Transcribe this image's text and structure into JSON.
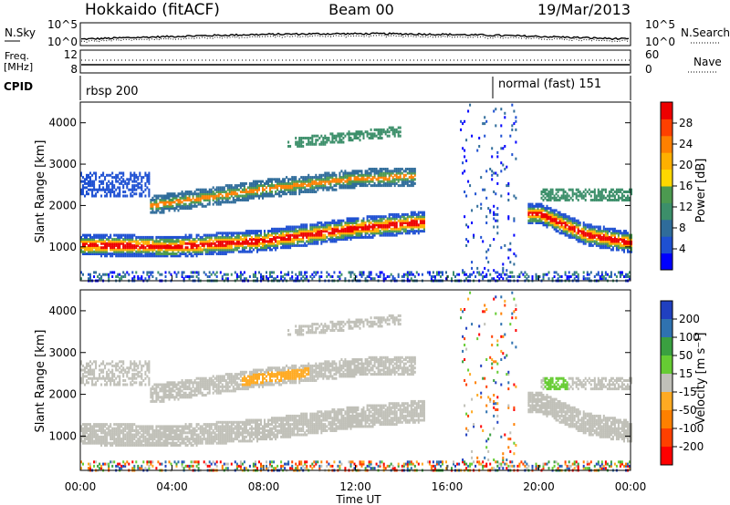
{
  "header": {
    "station": "Hokkaido (fitACF)",
    "beam": "Beam 00",
    "date": "19/Mar/2013"
  },
  "strip": {
    "nsky_label": "N.Sky",
    "nsky_ticks": [
      "10^5",
      "10^0"
    ],
    "nsearch_label": "N.Search",
    "nsearch_ticks": [
      "10^5",
      "10^0"
    ],
    "freq_label": "Freq.",
    "freq_unit": "[MHz]",
    "freq_ticks": [
      "12",
      "8"
    ],
    "nave_label": "Nave",
    "nave_ticks": [
      "60",
      "0"
    ],
    "cpid_label": "CPID",
    "cpid_segments": [
      {
        "name": "rbsp 200",
        "start_hour": 0
      },
      {
        "name": "normal (fast) 151",
        "start_hour": 18
      }
    ]
  },
  "chart_data": [
    {
      "type": "heatmap",
      "parameter": "Power",
      "ylabel": "Slant Range [km]",
      "xlabel": "",
      "ylim": [
        180,
        4500
      ],
      "xlim": [
        0,
        24
      ],
      "yticks": [
        "1000",
        "2000",
        "3000",
        "4000"
      ],
      "colorbar": {
        "label": "Power [dB]",
        "ticks": [
          "4",
          "8",
          "12",
          "16",
          "20",
          "24",
          "28"
        ],
        "colors": [
          "#0000ff",
          "#1e50d2",
          "#2f6c9a",
          "#3c8f6a",
          "#4c9a50",
          "#ffd800",
          "#ffb000",
          "#ff8000",
          "#ff4000",
          "#ee0000"
        ]
      },
      "features": [
        {
          "desc": "E-region/near-range scatter band",
          "times": [
            0,
            4,
            8,
            12,
            15
          ],
          "range_km": [
            1050,
            1000,
            1150,
            1450,
            1600
          ]
        },
        {
          "desc": "Far-range F-region band",
          "times": [
            3,
            8,
            12,
            14.5
          ],
          "range_km": [
            2000,
            2400,
            2650,
            2700
          ]
        },
        {
          "desc": "Dusk/evening band",
          "times": [
            20,
            22,
            24
          ],
          "range_km": [
            1800,
            1300,
            1100
          ]
        }
      ]
    },
    {
      "type": "heatmap",
      "parameter": "Velocity",
      "ylabel": "Slant Range [km]",
      "xlabel": "Time UT",
      "ylim": [
        180,
        4500
      ],
      "xlim": [
        0,
        24
      ],
      "yticks": [
        "1000",
        "2000",
        "3000",
        "4000"
      ],
      "xticks": [
        "00:00",
        "04:00",
        "08:00",
        "12:00",
        "16:00",
        "20:00",
        "00:00"
      ],
      "colorbar": {
        "label": "Velocity [m s⁻¹]",
        "ticks": [
          "200",
          "100",
          "50",
          "15",
          "-15",
          "-50",
          "-100",
          "-200"
        ],
        "colors": [
          "#2040c0",
          "#2f72b0",
          "#3aa040",
          "#66cc33",
          "#c0c0b8",
          "#ffaa22",
          "#ff8000",
          "#ff4000",
          "#ff0000"
        ]
      }
    }
  ]
}
